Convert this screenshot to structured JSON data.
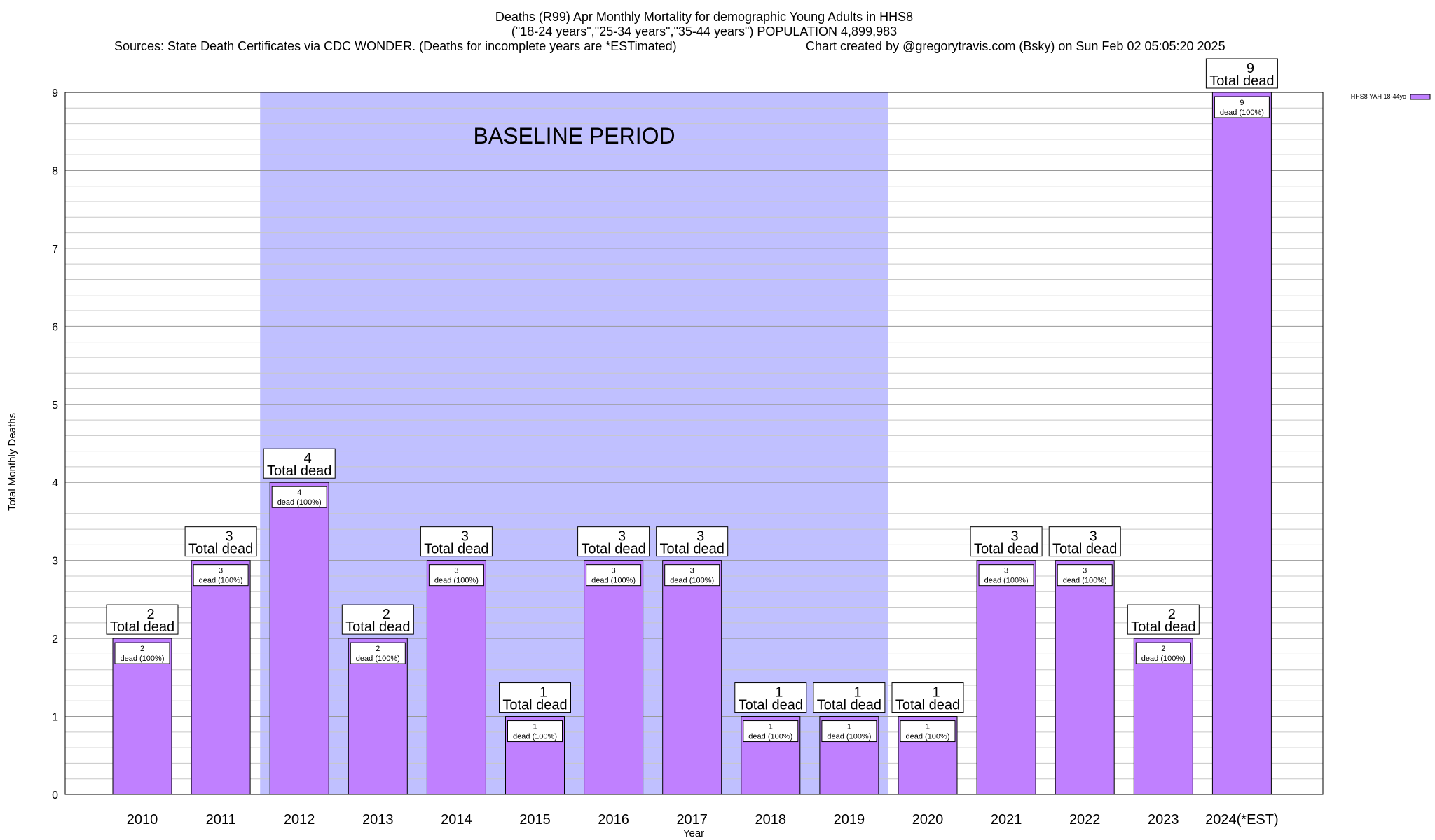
{
  "chart_data": {
    "type": "bar",
    "title_lines": [
      "Deaths (R99) Apr Monthly Mortality for demographic Young Adults in HHS8",
      "(\"18-24 years\",\"25-34 years\",\"35-44 years\") POPULATION 4,899,983"
    ],
    "sources_text": "Sources: State Death Certificates via CDC WONDER. (Deaths for incomplete years are *ESTimated)",
    "credit_text": "Chart created by @gregorytravis.com (Bsky) on Sun Feb 02 05:05:20 2025",
    "xlabel": "Year",
    "ylabel": "Total Monthly Deaths",
    "ylim": [
      0,
      9
    ],
    "yticks": [
      0,
      1,
      2,
      3,
      4,
      5,
      6,
      7,
      8,
      9
    ],
    "minor_grid_per_unit": 5,
    "categories": [
      "2010",
      "2011",
      "2012",
      "2013",
      "2014",
      "2015",
      "2016",
      "2017",
      "2018",
      "2019",
      "2020",
      "2021",
      "2022",
      "2023",
      "2024(*EST)"
    ],
    "series": [
      {
        "name": "HHS8 YAH 18-44yo",
        "color": "#c080ff",
        "values": [
          2,
          3,
          4,
          2,
          3,
          1,
          3,
          3,
          1,
          1,
          1,
          3,
          3,
          2,
          9
        ]
      }
    ],
    "bar_label_total_suffix": "Total dead",
    "bar_label_inner_suffix": "dead (100%)",
    "baseline": {
      "label": "BASELINE PERIOD",
      "from_category": "2012",
      "to_category": "2019",
      "color": "#c0c0ff"
    },
    "legend": {
      "position": "top-right"
    },
    "grid": true
  }
}
